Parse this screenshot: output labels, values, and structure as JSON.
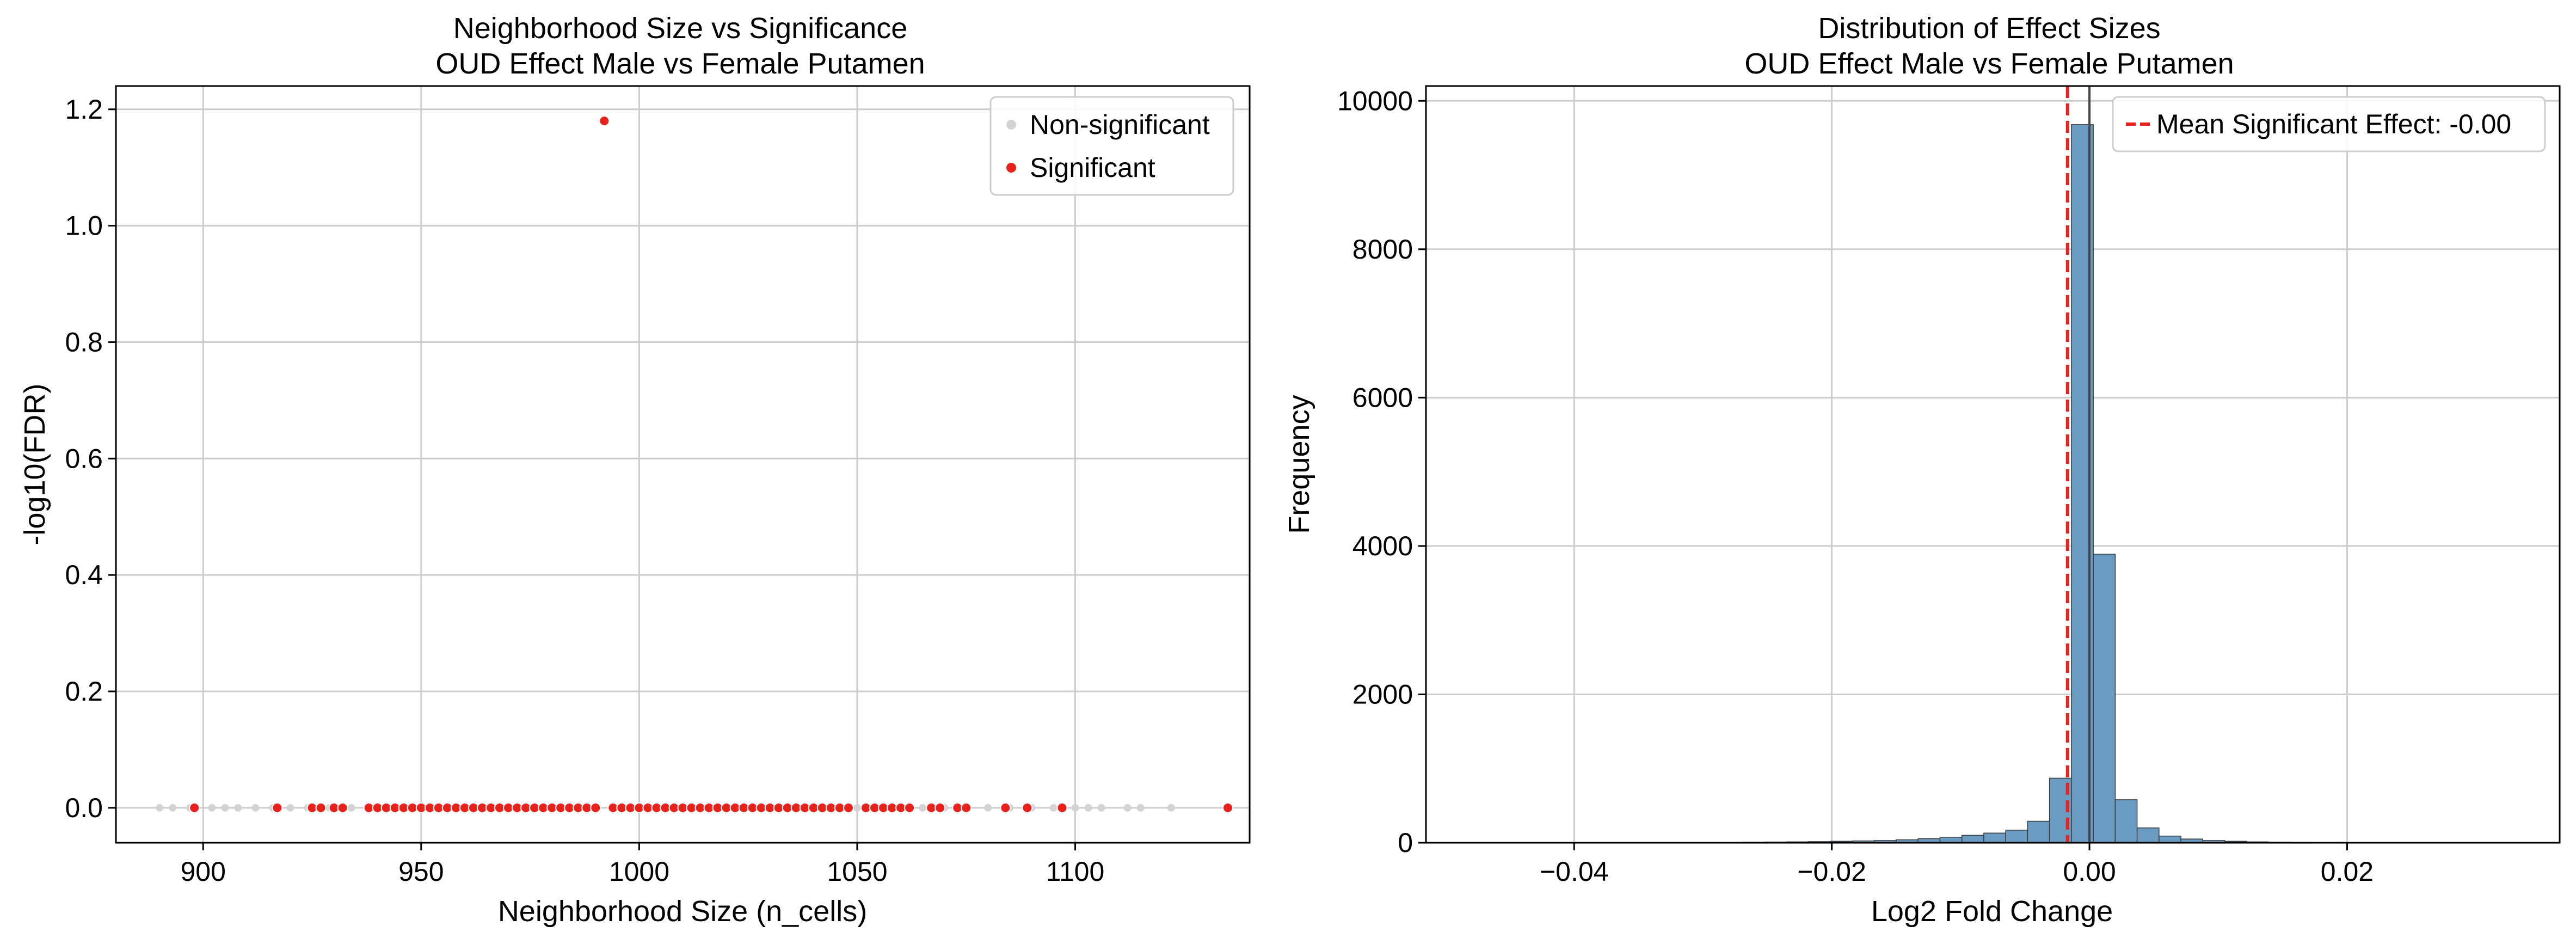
{
  "chart_data": [
    {
      "type": "scatter",
      "title": "Neighborhood Size vs Significance",
      "subtitle": "OUD Effect Male vs Female Putamen",
      "xlabel": "Neighborhood Size (n_cells)",
      "ylabel": "-log10(FDR)",
      "xlim": [
        880,
        1140
      ],
      "ylim": [
        -0.06,
        1.24
      ],
      "xticks": [
        "900",
        "950",
        "1000",
        "1050",
        "1100"
      ],
      "xtick_values": [
        900,
        950,
        1000,
        1050,
        1100
      ],
      "yticks": [
        "0.0",
        "0.2",
        "0.4",
        "0.6",
        "0.8",
        "1.0",
        "1.2"
      ],
      "ytick_values": [
        0.0,
        0.2,
        0.4,
        0.6,
        0.8,
        1.0,
        1.2
      ],
      "grid": true,
      "legend_position": "top-right",
      "series": [
        {
          "name": "Non-significant",
          "color": "#d3d3d3",
          "x": [
            890,
            893,
            897,
            902,
            905,
            908,
            912,
            916,
            920,
            924,
            929,
            934,
            939,
            944,
            950,
            955,
            960,
            965,
            970,
            975,
            980,
            985,
            990,
            995,
            1000,
            1005,
            1010,
            1015,
            1020,
            1025,
            1030,
            1035,
            1040,
            1045,
            1050,
            1055,
            1060,
            1065,
            1070,
            1075,
            1080,
            1085,
            1090,
            1095,
            1100,
            1103,
            1106,
            1112,
            1115,
            1122
          ],
          "y": [
            0,
            0,
            0,
            0,
            0,
            0,
            0,
            0,
            0,
            0,
            0,
            0,
            0,
            0,
            0,
            0,
            0,
            0,
            0,
            0,
            0,
            0,
            0,
            0,
            0,
            0,
            0,
            0,
            0,
            0,
            0,
            0,
            0,
            0,
            0,
            0,
            0,
            0,
            0,
            0,
            0,
            0,
            0,
            0,
            0,
            0,
            0,
            0,
            0,
            0
          ]
        },
        {
          "name": "Significant",
          "color": "#e8211c",
          "x": [
            898,
            917,
            925,
            927,
            930,
            932,
            938,
            940,
            942,
            944,
            946,
            948,
            950,
            952,
            954,
            956,
            958,
            960,
            962,
            964,
            966,
            968,
            970,
            972,
            974,
            976,
            978,
            980,
            982,
            984,
            986,
            988,
            990,
            994,
            996,
            998,
            1000,
            1002,
            1004,
            1006,
            1008,
            1010,
            1012,
            1014,
            1016,
            1018,
            1020,
            1022,
            1024,
            1026,
            1028,
            1030,
            1032,
            1034,
            1036,
            1038,
            1040,
            1042,
            1044,
            1046,
            1048,
            1052,
            1054,
            1056,
            1058,
            1060,
            1062,
            1067,
            1069,
            1073,
            1075,
            1084,
            1089,
            1097,
            1135,
            992
          ],
          "y": [
            0,
            0,
            0,
            0,
            0,
            0,
            0,
            0,
            0,
            0,
            0,
            0,
            0,
            0,
            0,
            0,
            0,
            0,
            0,
            0,
            0,
            0,
            0,
            0,
            0,
            0,
            0,
            0,
            0,
            0,
            0,
            0,
            0,
            0,
            0,
            0,
            0,
            0,
            0,
            0,
            0,
            0,
            0,
            0,
            0,
            0,
            0,
            0,
            0,
            0,
            0,
            0,
            0,
            0,
            0,
            0,
            0,
            0,
            0,
            0,
            0,
            0,
            0,
            0,
            0,
            0,
            0,
            0,
            0,
            0,
            0,
            0,
            0,
            0,
            0,
            1.18
          ]
        }
      ]
    },
    {
      "type": "bar",
      "title": "Distribution of Effect Sizes",
      "subtitle": "OUD Effect Male vs Female Putamen",
      "xlabel": "Log2 Fold Change",
      "ylabel": "Frequency",
      "xlim": [
        -0.0515,
        0.0365
      ],
      "ylim": [
        0,
        10200
      ],
      "xticks": [
        "−0.04",
        "−0.02",
        "0.00",
        "0.02"
      ],
      "xtick_values": [
        -0.04,
        -0.02,
        0.0,
        0.02
      ],
      "yticks": [
        "0",
        "2000",
        "4000",
        "6000",
        "8000",
        "10000"
      ],
      "ytick_values": [
        0,
        2000,
        4000,
        6000,
        8000,
        10000
      ],
      "grid": true,
      "legend_position": "top-right",
      "bar_color": "#6a9bc3",
      "bin_edges": [
        -0.049,
        -0.0473,
        -0.0456,
        -0.0439,
        -0.0422,
        -0.0405,
        -0.0388,
        -0.0371,
        -0.0354,
        -0.0337,
        -0.032,
        -0.0303,
        -0.0286,
        -0.0269,
        -0.0252,
        -0.0235,
        -0.0218,
        -0.0201,
        -0.0184,
        -0.0167,
        -0.015,
        -0.0133,
        -0.0116,
        -0.0099,
        -0.0082,
        -0.0065,
        -0.0048,
        -0.0031,
        -0.0014,
        0.0003,
        0.002,
        0.0037,
        0.0054,
        0.0071,
        0.0088,
        0.0105,
        0.0122,
        0.0139,
        0.0156,
        0.0173,
        0.019,
        0.0207,
        0.0224,
        0.0241,
        0.0258,
        0.0275,
        0.0292,
        0.0309,
        0.0326,
        0.0343
      ],
      "values": [
        3,
        2,
        1,
        2,
        1,
        1,
        2,
        1,
        2,
        3,
        3,
        4,
        5,
        8,
        10,
        12,
        15,
        20,
        25,
        30,
        40,
        55,
        75,
        100,
        130,
        170,
        290,
        870,
        9680,
        3890,
        580,
        200,
        90,
        50,
        30,
        20,
        12,
        8,
        6,
        5,
        4,
        3,
        3,
        2,
        2,
        1,
        1,
        1,
        1
      ],
      "reference_lines": [
        {
          "name": "zero",
          "x": 0.0,
          "color": "#444444",
          "style": "solid"
        },
        {
          "name": "Mean Significant Effect: -0.00",
          "x": -0.0017,
          "color": "#e8211c",
          "style": "dashed"
        }
      ],
      "legend": [
        {
          "label": "Mean Significant Effect: -0.00",
          "color": "#e8211c"
        }
      ]
    }
  ]
}
